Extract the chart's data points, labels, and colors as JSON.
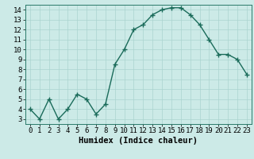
{
  "x": [
    0,
    1,
    2,
    3,
    4,
    5,
    6,
    7,
    8,
    9,
    10,
    11,
    12,
    13,
    14,
    15,
    16,
    17,
    18,
    19,
    20,
    21,
    22,
    23
  ],
  "y": [
    4.0,
    3.0,
    5.0,
    3.0,
    4.0,
    5.5,
    5.0,
    3.5,
    4.5,
    8.5,
    10.0,
    12.0,
    12.5,
    13.5,
    14.0,
    14.2,
    14.2,
    13.5,
    12.5,
    11.0,
    9.5,
    9.5,
    9.0,
    7.5
  ],
  "line_color": "#1a6b5a",
  "marker": "+",
  "marker_size": 4,
  "marker_lw": 1.0,
  "bg_color": "#cceae7",
  "grid_color": "#aad4d0",
  "xlabel": "Humidex (Indice chaleur)",
  "xlabel_fontsize": 7.5,
  "xlim": [
    -0.5,
    23.5
  ],
  "ylim": [
    2.5,
    14.5
  ],
  "yticks": [
    3,
    4,
    5,
    6,
    7,
    8,
    9,
    10,
    11,
    12,
    13,
    14
  ],
  "xticks": [
    0,
    1,
    2,
    3,
    4,
    5,
    6,
    7,
    8,
    9,
    10,
    11,
    12,
    13,
    14,
    15,
    16,
    17,
    18,
    19,
    20,
    21,
    22,
    23
  ],
  "tick_fontsize": 6.5,
  "line_width": 1.0
}
